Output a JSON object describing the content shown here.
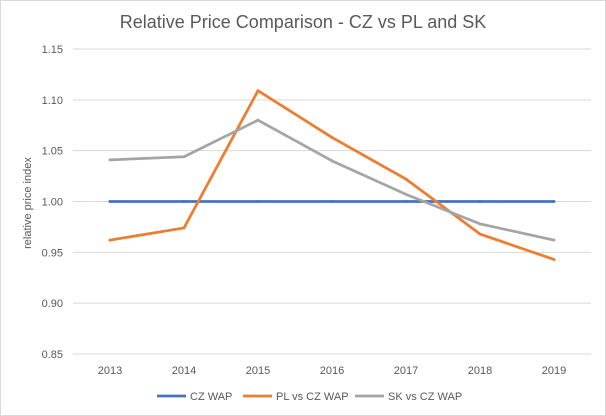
{
  "chart_data": {
    "type": "line",
    "title": "Relative Price Comparison - CZ vs PL and SK",
    "xlabel": "",
    "ylabel": "relative price index",
    "categories": [
      "2013",
      "2014",
      "2015",
      "2016",
      "2017",
      "2018",
      "2019"
    ],
    "ylim": [
      0.85,
      1.15
    ],
    "yticks": [
      "0.85",
      "0.90",
      "0.95",
      "1.00",
      "1.05",
      "1.10",
      "1.15"
    ],
    "grid": true,
    "legend_position": "bottom",
    "series": [
      {
        "name": "CZ WAP",
        "color": "#4472c4",
        "values": [
          1.0,
          1.0,
          1.0,
          1.0,
          1.0,
          1.0,
          1.0
        ]
      },
      {
        "name": "PL vs CZ WAP",
        "color": "#ed7d31",
        "values": [
          0.962,
          0.974,
          1.109,
          1.063,
          1.022,
          0.968,
          0.943
        ]
      },
      {
        "name": "SK vs CZ WAP",
        "color": "#a5a5a5",
        "values": [
          1.041,
          1.044,
          1.08,
          1.04,
          1.007,
          0.978,
          0.962
        ]
      }
    ]
  }
}
